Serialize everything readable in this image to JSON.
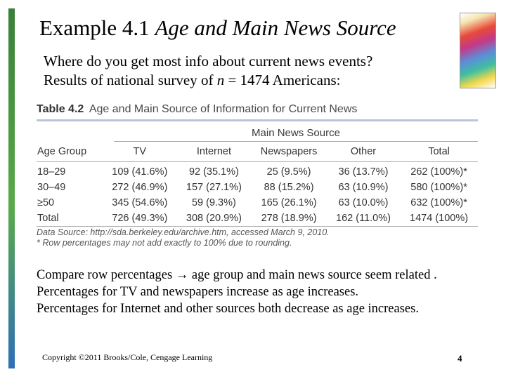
{
  "slide": {
    "title_main": "Example 4.1",
    "title_italic": "Age and Main News Source",
    "intro_line1": "Where do you get most info about current news events?",
    "intro_line2_a": "Results of national survey of ",
    "intro_n": "n",
    "intro_line2_b": " = 1474 Americans:"
  },
  "table": {
    "label": "Table 4.2",
    "caption": "Age and Main Source of Information for Current News",
    "group_header": "Main News Source",
    "columns": [
      "Age Group",
      "TV",
      "Internet",
      "Newspapers",
      "Other",
      "Total"
    ],
    "rows": [
      [
        "18–29",
        "109 (41.6%)",
        "92 (35.1%)",
        "25 (9.5%)",
        "36 (13.7%)",
        "262 (100%)*"
      ],
      [
        "30–49",
        "272 (46.9%)",
        "157 (27.1%)",
        "88 (15.2%)",
        "63 (10.9%)",
        "580 (100%)*"
      ],
      [
        "≥50",
        "345 (54.6%)",
        "59 (9.3%)",
        "165 (26.1%)",
        "63 (10.0%)",
        "632 (100%)*"
      ],
      [
        "Total",
        "726 (49.3%)",
        "308 (20.9%)",
        "278 (18.9%)",
        "162 (11.0%)",
        "1474 (100%)"
      ]
    ],
    "note_source": "Data Source: http://sda.berkeley.edu/archive.htm, accessed March 9, 2010.",
    "note_footnote": "* Row percentages may not add exactly to 100% due to rounding."
  },
  "compare": {
    "line1_a": "Compare row percentages ",
    "arrow": "→",
    "line1_b": " age group and main news source seem related .",
    "line2": "Percentages for TV and newspapers increase as age increases.",
    "line3": "Percentages for Internet and other sources both decrease as age increases."
  },
  "footer": {
    "copyright": "Copyright ©2011 Brooks/Cole, Cengage Learning",
    "page_number": "4"
  }
}
